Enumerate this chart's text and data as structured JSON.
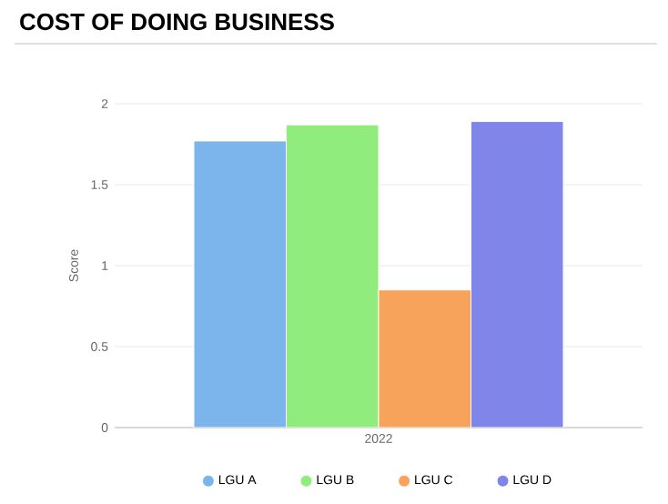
{
  "chart_data": {
    "type": "bar",
    "title": "COST OF DOING BUSINESS",
    "ylabel": "Score",
    "categories": [
      "2022"
    ],
    "series": [
      {
        "name": "LGU A",
        "color": "#7cb5ec",
        "values": [
          1.77
        ]
      },
      {
        "name": "LGU B",
        "color": "#90ed7d",
        "values": [
          1.87
        ]
      },
      {
        "name": "LGU C",
        "color": "#f7a35c",
        "values": [
          0.85
        ]
      },
      {
        "name": "LGU D",
        "color": "#8085e9",
        "values": [
          1.89
        ]
      }
    ],
    "ylim": [
      0,
      2
    ],
    "yticks": [
      0,
      0.5,
      1,
      1.5,
      2
    ],
    "grid": "y",
    "legend": "bottom"
  }
}
